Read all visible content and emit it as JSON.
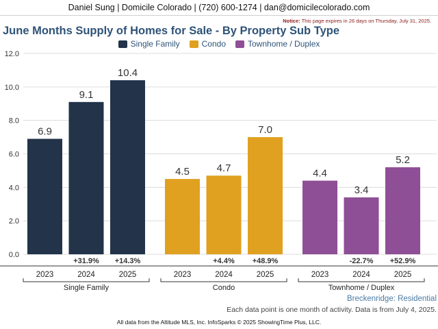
{
  "header": {
    "agent": "Daniel Sung | Domicile Colorado | (720) 600-1274 | dan@domicilecolorado.com",
    "notice_label": "Notice:",
    "notice_text": "This page expires in 26 days on Thursday, July 31, 2025."
  },
  "footer": {
    "location": "Breckenridge: Residential",
    "data_note": "Each data point is one month of activity. Data is from July 4, 2025.",
    "source": "All data from the Altitude MLS, Inc. InfoSparks © 2025 ShowingTime Plus, LLC."
  },
  "chart_data": {
    "type": "bar",
    "title": "June Months Supply of Homes for Sale - By Property Sub Type",
    "xlabel": "",
    "ylabel": "",
    "ylim": [
      0,
      12
    ],
    "yticks": [
      "0.0",
      "2.0",
      "4.0",
      "6.0",
      "8.0",
      "10.0",
      "12.0"
    ],
    "grid": true,
    "legend_position": "top-center",
    "groups": [
      {
        "name": "Single Family",
        "color": "#22334a",
        "years": [
          "2023",
          "2024",
          "2025"
        ],
        "values": [
          6.9,
          9.1,
          10.4
        ],
        "value_labels": [
          "6.9",
          "9.1",
          "10.4"
        ],
        "changes": [
          "",
          "+31.9%",
          "+14.3%"
        ]
      },
      {
        "name": "Condo",
        "color": "#e0a020",
        "years": [
          "2023",
          "2024",
          "2025"
        ],
        "values": [
          4.5,
          4.7,
          7.0
        ],
        "value_labels": [
          "4.5",
          "4.7",
          "7.0"
        ],
        "changes": [
          "",
          "+4.4%",
          "+48.9%"
        ]
      },
      {
        "name": "Townhome / Duplex",
        "color": "#8e4f96",
        "years": [
          "2023",
          "2024",
          "2025"
        ],
        "values": [
          4.4,
          3.4,
          5.2
        ],
        "value_labels": [
          "4.4",
          "3.4",
          "5.2"
        ],
        "changes": [
          "",
          "-22.7%",
          "+52.9%"
        ]
      }
    ]
  }
}
